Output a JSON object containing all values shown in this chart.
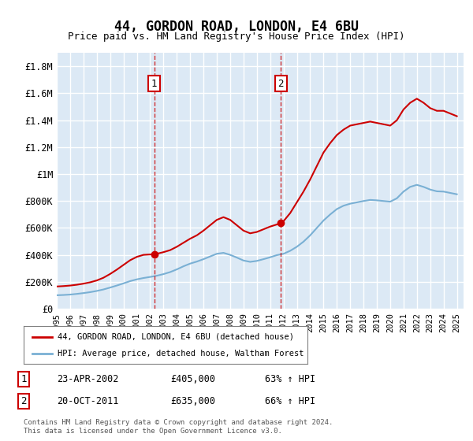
{
  "title": "44, GORDON ROAD, LONDON, E4 6BU",
  "subtitle": "Price paid vs. HM Land Registry's House Price Index (HPI)",
  "xlabel": "",
  "ylabel": "",
  "background_color": "#ffffff",
  "plot_bg_color": "#dce9f5",
  "grid_color": "#ffffff",
  "ylim": [
    0,
    1900000
  ],
  "yticks": [
    0,
    200000,
    400000,
    600000,
    800000,
    1000000,
    1200000,
    1400000,
    1600000,
    1800000
  ],
  "ytick_labels": [
    "£0",
    "£200K",
    "£400K",
    "£600K",
    "£800K",
    "£1M",
    "£1.2M",
    "£1.4M",
    "£1.6M",
    "£1.8M"
  ],
  "xlim_start": 1995.0,
  "xlim_end": 2025.5,
  "xticks": [
    1995,
    1996,
    1997,
    1998,
    1999,
    2000,
    2001,
    2002,
    2003,
    2004,
    2005,
    2006,
    2007,
    2008,
    2009,
    2010,
    2011,
    2012,
    2013,
    2014,
    2015,
    2016,
    2017,
    2018,
    2019,
    2020,
    2021,
    2022,
    2023,
    2024,
    2025
  ],
  "red_line_color": "#cc0000",
  "blue_line_color": "#7ab0d4",
  "dashed_line_color": "#cc0000",
  "marker1_x": 2002.31,
  "marker1_y": 405000,
  "marker2_x": 2011.8,
  "marker2_y": 635000,
  "legend_label_red": "44, GORDON ROAD, LONDON, E4 6BU (detached house)",
  "legend_label_blue": "HPI: Average price, detached house, Waltham Forest",
  "annotation1_label": "1",
  "annotation1_date": "23-APR-2002",
  "annotation1_price": "£405,000",
  "annotation1_hpi": "63% ↑ HPI",
  "annotation2_label": "2",
  "annotation2_date": "20-OCT-2011",
  "annotation2_price": "£635,000",
  "annotation2_hpi": "66% ↑ HPI",
  "footer": "Contains HM Land Registry data © Crown copyright and database right 2024.\nThis data is licensed under the Open Government Licence v3.0.",
  "red_line_x": [
    1995.0,
    1995.5,
    1996.0,
    1996.5,
    1997.0,
    1997.5,
    1998.0,
    1998.5,
    1999.0,
    1999.5,
    2000.0,
    2000.5,
    2001.0,
    2001.5,
    2002.31,
    2002.5,
    2003.0,
    2003.5,
    2004.0,
    2004.5,
    2005.0,
    2005.5,
    2006.0,
    2006.5,
    2007.0,
    2007.5,
    2008.0,
    2008.5,
    2009.0,
    2009.5,
    2010.0,
    2010.5,
    2011.0,
    2011.8,
    2012.0,
    2012.5,
    2013.0,
    2013.5,
    2014.0,
    2014.5,
    2015.0,
    2015.5,
    2016.0,
    2016.5,
    2017.0,
    2017.5,
    2018.0,
    2018.5,
    2019.0,
    2019.5,
    2020.0,
    2020.5,
    2021.0,
    2021.5,
    2022.0,
    2022.5,
    2023.0,
    2023.5,
    2024.0,
    2024.5,
    2025.0
  ],
  "red_line_y": [
    165000,
    168000,
    172000,
    178000,
    186000,
    196000,
    210000,
    230000,
    258000,
    290000,
    325000,
    360000,
    385000,
    400000,
    405000,
    408000,
    420000,
    435000,
    460000,
    490000,
    520000,
    545000,
    580000,
    620000,
    660000,
    680000,
    660000,
    620000,
    580000,
    560000,
    570000,
    590000,
    610000,
    635000,
    650000,
    710000,
    790000,
    870000,
    960000,
    1060000,
    1160000,
    1230000,
    1290000,
    1330000,
    1360000,
    1370000,
    1380000,
    1390000,
    1380000,
    1370000,
    1360000,
    1400000,
    1480000,
    1530000,
    1560000,
    1530000,
    1490000,
    1470000,
    1470000,
    1450000,
    1430000
  ],
  "blue_line_x": [
    1995.0,
    1995.5,
    1996.0,
    1996.5,
    1997.0,
    1997.5,
    1998.0,
    1998.5,
    1999.0,
    1999.5,
    2000.0,
    2000.5,
    2001.0,
    2001.5,
    2002.0,
    2002.5,
    2003.0,
    2003.5,
    2004.0,
    2004.5,
    2005.0,
    2005.5,
    2006.0,
    2006.5,
    2007.0,
    2007.5,
    2008.0,
    2008.5,
    2009.0,
    2009.5,
    2010.0,
    2010.5,
    2011.0,
    2011.5,
    2012.0,
    2012.5,
    2013.0,
    2013.5,
    2014.0,
    2014.5,
    2015.0,
    2015.5,
    2016.0,
    2016.5,
    2017.0,
    2017.5,
    2018.0,
    2018.5,
    2019.0,
    2019.5,
    2020.0,
    2020.5,
    2021.0,
    2021.5,
    2022.0,
    2022.5,
    2023.0,
    2023.5,
    2024.0,
    2024.5,
    2025.0
  ],
  "blue_line_y": [
    100000,
    102000,
    105000,
    110000,
    116000,
    123000,
    132000,
    143000,
    157000,
    172000,
    188000,
    205000,
    218000,
    228000,
    236000,
    245000,
    257000,
    272000,
    292000,
    315000,
    335000,
    350000,
    368000,
    388000,
    408000,
    415000,
    400000,
    380000,
    358000,
    348000,
    355000,
    368000,
    382000,
    398000,
    408000,
    430000,
    460000,
    498000,
    545000,
    600000,
    655000,
    700000,
    740000,
    765000,
    780000,
    790000,
    800000,
    808000,
    805000,
    800000,
    795000,
    820000,
    870000,
    905000,
    920000,
    905000,
    885000,
    872000,
    870000,
    860000,
    850000
  ]
}
